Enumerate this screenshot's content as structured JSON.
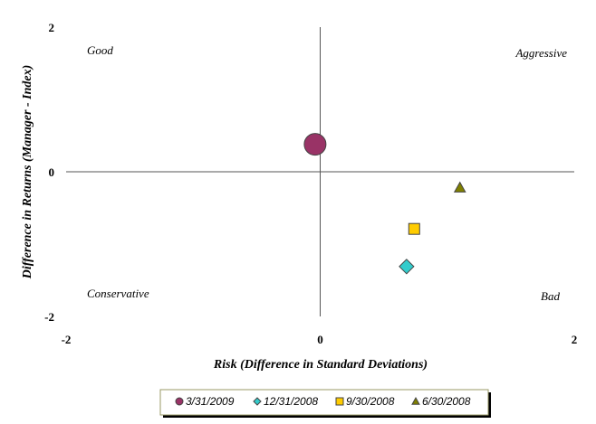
{
  "chart_data": {
    "type": "scatter",
    "title": "",
    "xlabel": "Risk (Difference in Standard Deviations)",
    "ylabel": "Difference in Returns (Manager - Index)",
    "xlim": [
      -2,
      2
    ],
    "ylim": [
      -2,
      2
    ],
    "xticks": [
      "-2",
      "0",
      "2"
    ],
    "yticks": [
      "2",
      "0",
      "-2"
    ],
    "grid": false,
    "legend_placement": "bottom",
    "quadrant_labels": {
      "top_left": "Good",
      "top_right": "Aggressive",
      "bottom_left": "Conservative",
      "bottom_right": "Bad"
    },
    "series": [
      {
        "name": "3/31/2009",
        "marker": "circle",
        "color": "#993366",
        "x": -0.04,
        "y": 0.38
      },
      {
        "name": "12/31/2008",
        "marker": "diamond",
        "color": "#33CCCC",
        "x": 0.68,
        "y": -1.31
      },
      {
        "name": "9/30/2008",
        "marker": "square",
        "color": "#FFCC00",
        "x": 0.74,
        "y": -0.79
      },
      {
        "name": "6/30/2008",
        "marker": "triangle",
        "color": "#808000",
        "x": 1.1,
        "y": -0.22
      }
    ]
  }
}
